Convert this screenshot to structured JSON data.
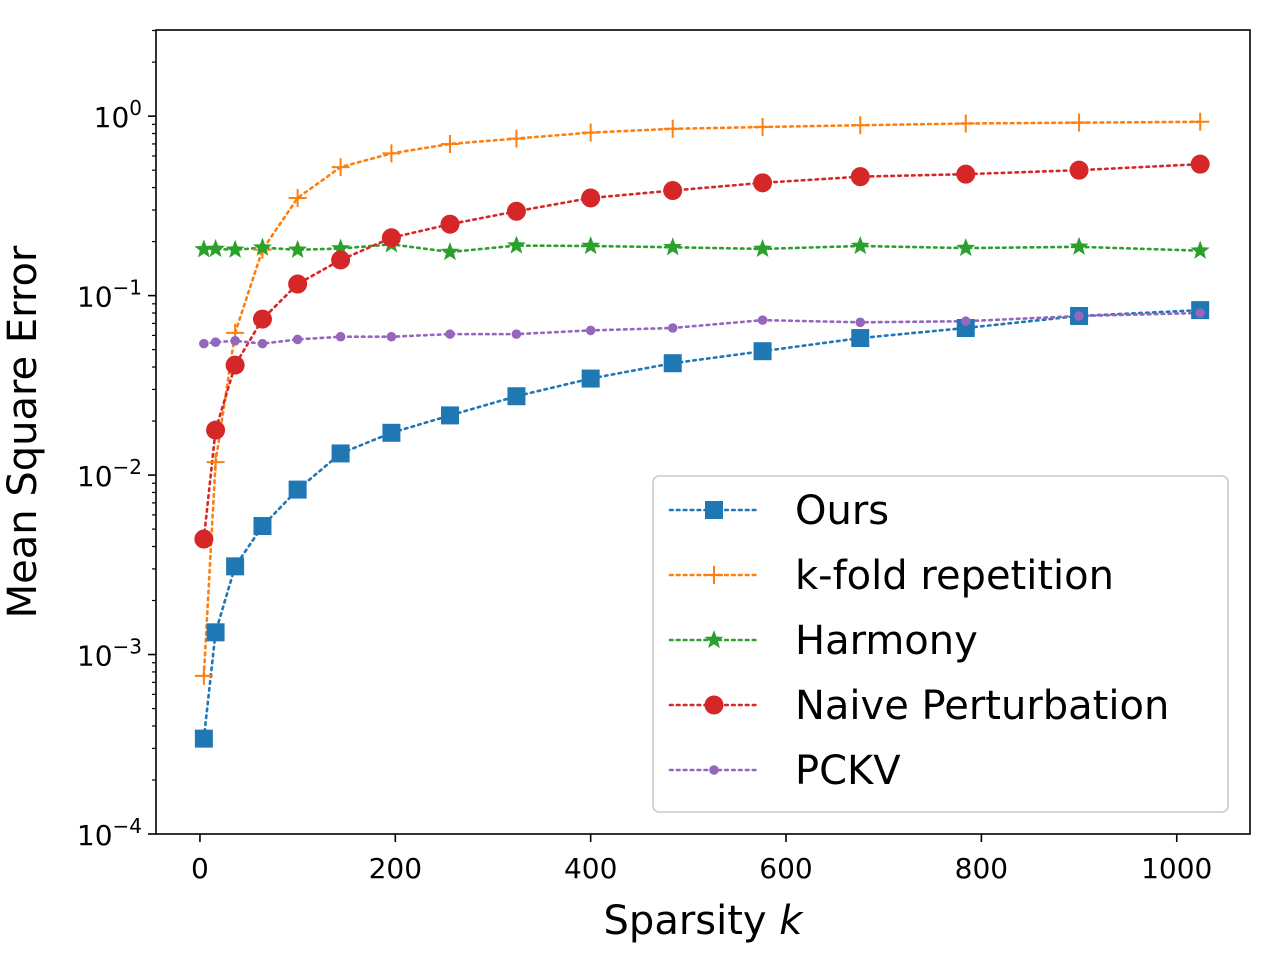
{
  "chart_data": {
    "type": "line",
    "xlabel_main": "Sparsity",
    "xlabel_var": "k",
    "ylabel": "Mean Square Error",
    "yscale": "log",
    "xlim": [
      -45,
      1075
    ],
    "ylim_log10": [
      -4,
      0.48
    ],
    "xticks": [
      {
        "value": 0,
        "label": "0"
      },
      {
        "value": 200,
        "label": "200"
      },
      {
        "value": 400,
        "label": "400"
      },
      {
        "value": 600,
        "label": "600"
      },
      {
        "value": 800,
        "label": "800"
      },
      {
        "value": 1000,
        "label": "1000"
      }
    ],
    "yticks": [
      {
        "exp": 0,
        "base": "10",
        "sup": "0"
      },
      {
        "exp": -1,
        "base": "10",
        "sup": "−1"
      },
      {
        "exp": -2,
        "base": "10",
        "sup": "−2"
      },
      {
        "exp": -3,
        "base": "10",
        "sup": "−3"
      },
      {
        "exp": -4,
        "base": "10",
        "sup": "−4"
      }
    ],
    "legend_position": "lower-right",
    "series": [
      {
        "name": "Ours",
        "color": "#1f77b4",
        "marker": "square",
        "x": [
          4,
          16,
          36,
          64,
          100,
          144,
          196,
          256,
          324,
          400,
          484,
          576,
          676,
          784,
          900,
          1024
        ],
        "y": [
          0.00034,
          0.00133,
          0.0031,
          0.0052,
          0.0083,
          0.0132,
          0.0172,
          0.0215,
          0.0275,
          0.0345,
          0.042,
          0.049,
          0.058,
          0.066,
          0.077,
          0.083
        ]
      },
      {
        "name": "k-fold repetition",
        "color": "#ff7f0e",
        "marker": "plus",
        "x": [
          4,
          16,
          36,
          64,
          100,
          144,
          196,
          256,
          324,
          400,
          484,
          576,
          676,
          784,
          900,
          1024
        ],
        "y": [
          0.00076,
          0.0118,
          0.062,
          0.18,
          0.35,
          0.52,
          0.62,
          0.7,
          0.75,
          0.81,
          0.85,
          0.87,
          0.89,
          0.91,
          0.92,
          0.93
        ]
      },
      {
        "name": "Harmony",
        "color": "#2ca02c",
        "marker": "star",
        "x": [
          4,
          16,
          36,
          64,
          100,
          144,
          196,
          256,
          324,
          400,
          484,
          576,
          676,
          784,
          900,
          1024
        ],
        "y": [
          0.181,
          0.182,
          0.18,
          0.185,
          0.18,
          0.183,
          0.193,
          0.175,
          0.19,
          0.189,
          0.186,
          0.182,
          0.189,
          0.184,
          0.187,
          0.178
        ]
      },
      {
        "name": "Naive Perturbation",
        "color": "#d62728",
        "marker": "circle",
        "x": [
          4,
          16,
          36,
          64,
          100,
          144,
          196,
          256,
          324,
          400,
          484,
          576,
          676,
          784,
          900,
          1024
        ],
        "y": [
          0.0044,
          0.0178,
          0.041,
          0.074,
          0.116,
          0.158,
          0.21,
          0.25,
          0.295,
          0.35,
          0.385,
          0.425,
          0.46,
          0.475,
          0.5,
          0.54
        ]
      },
      {
        "name": "PCKV",
        "color": "#9467bd",
        "marker": "dot",
        "x": [
          4,
          16,
          36,
          64,
          100,
          144,
          196,
          256,
          324,
          400,
          484,
          576,
          676,
          784,
          900,
          1024
        ],
        "y": [
          0.054,
          0.055,
          0.056,
          0.054,
          0.057,
          0.059,
          0.059,
          0.061,
          0.061,
          0.064,
          0.066,
          0.073,
          0.071,
          0.072,
          0.077,
          0.08
        ]
      }
    ]
  }
}
